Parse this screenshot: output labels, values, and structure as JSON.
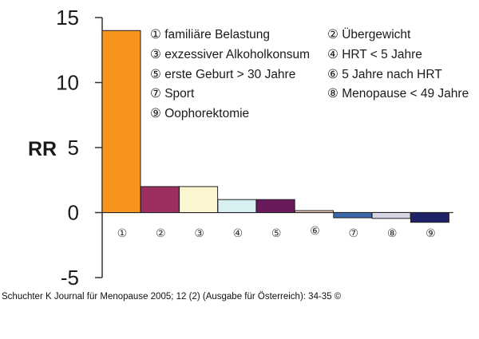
{
  "chart_data": {
    "type": "bar",
    "ylabel": "RR",
    "ylim": [
      -5,
      15
    ],
    "yticks": [
      -5,
      0,
      5,
      10,
      15
    ],
    "categories": [
      "①",
      "②",
      "③",
      "④",
      "⑤",
      "⑥",
      "⑦",
      "⑧",
      "⑨"
    ],
    "values": [
      14.0,
      2.0,
      2.0,
      1.0,
      1.0,
      0.15,
      -0.4,
      -0.45,
      -0.75
    ],
    "colors": [
      "#f7941d",
      "#9c2f60",
      "#fbf6cf",
      "#d9f0f2",
      "#6a1a5c",
      "#f1c9b8",
      "#3b67ad",
      "#d6d6e6",
      "#1f2266"
    ],
    "legend": [
      "① familiäre Belastung",
      "② Übergewicht",
      "③ exzessiver Alkoholkonsum",
      "④ HRT < 5 Jahre",
      "⑤ erste Geburt > 30 Jahre",
      "⑥ 5 Jahre nach HRT",
      "⑦ Sport",
      "⑧ Menopause < 49 Jahre",
      "⑨ Oophorektomie"
    ]
  },
  "caption": "Schuchter K Journal für Menopause 2005; 12 (2) (Ausgabe für Österreich): 34-35 ©"
}
